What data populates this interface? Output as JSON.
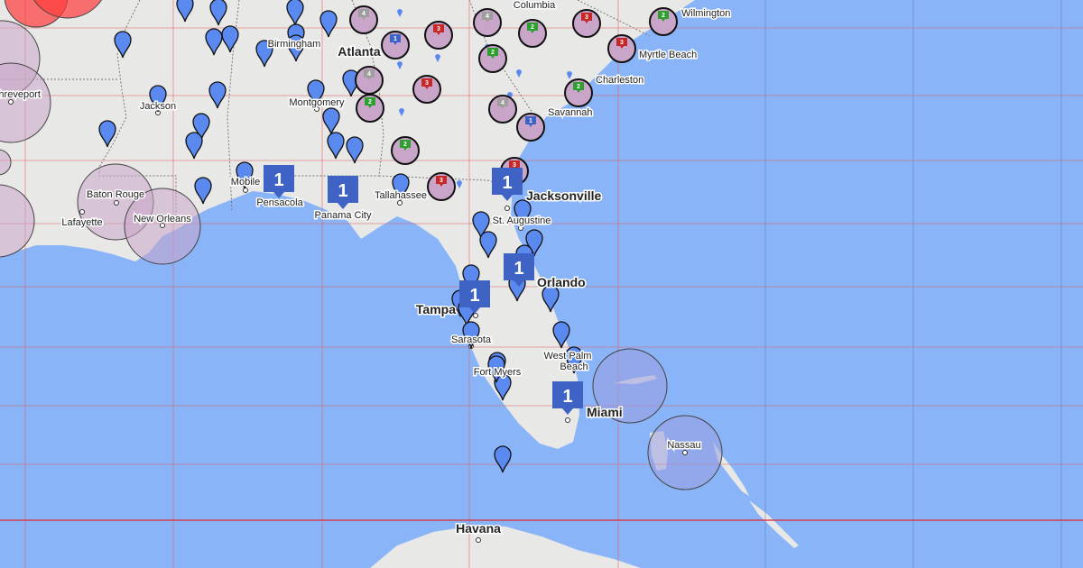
{
  "map": {
    "colors": {
      "water": "#8ab4f8",
      "land": "#e8e8e6",
      "grid": "#e06060",
      "grid_ocean": "#5a6fb0",
      "pin": "#5a8af0",
      "cluster_fill": "#c9a6c9",
      "square_marker": "#3f63c4",
      "red_circle": "#ff3b3b"
    },
    "cities": [
      {
        "name": "Atlanta",
        "major": true
      },
      {
        "name": "Birmingham"
      },
      {
        "name": "Columbia"
      },
      {
        "name": "Wilmington"
      },
      {
        "name": "Myrtle Beach"
      },
      {
        "name": "Charleston"
      },
      {
        "name": "Savannah"
      },
      {
        "name": "Montgomery"
      },
      {
        "name": "Jackson"
      },
      {
        "name": "Shreveport"
      },
      {
        "name": "Baton Rouge"
      },
      {
        "name": "Lafayette"
      },
      {
        "name": "New Orleans"
      },
      {
        "name": "Mobile"
      },
      {
        "name": "Pensacola"
      },
      {
        "name": "Panama City"
      },
      {
        "name": "Tallahassee"
      },
      {
        "name": "Jacksonville",
        "major": true
      },
      {
        "name": "St. Augustine"
      },
      {
        "name": "Orlando",
        "major": true
      },
      {
        "name": "Tampa",
        "major": true
      },
      {
        "name": "Sarasota"
      },
      {
        "name": "Fort Myers"
      },
      {
        "name": "West Palm Beach"
      },
      {
        "name": "Miami",
        "major": true
      },
      {
        "name": "Nassau"
      },
      {
        "name": "Havana",
        "major": true
      }
    ],
    "square_markers": [
      {
        "count": "1"
      },
      {
        "count": "1"
      },
      {
        "count": "1"
      },
      {
        "count": "1"
      },
      {
        "count": "1"
      },
      {
        "count": "1"
      }
    ],
    "cluster_markers": [
      {
        "count": "4",
        "color": "#9e9e9e"
      },
      {
        "count": "1",
        "color": "#3f63c4"
      },
      {
        "count": "3",
        "color": "#c62828"
      },
      {
        "count": "4",
        "color": "#9e9e9e"
      },
      {
        "count": "2",
        "color": "#2e9e2e"
      },
      {
        "count": "3",
        "color": "#c62828"
      },
      {
        "count": "2",
        "color": "#2e9e2e"
      },
      {
        "count": "3",
        "color": "#c62828"
      },
      {
        "count": "2",
        "color": "#2e9e2e"
      },
      {
        "count": "4",
        "color": "#9e9e9e"
      },
      {
        "count": "3",
        "color": "#c62828"
      },
      {
        "count": "2",
        "color": "#2e9e2e"
      },
      {
        "count": "2",
        "color": "#2e9e2e"
      },
      {
        "count": "4",
        "color": "#9e9e9e"
      },
      {
        "count": "1",
        "color": "#3f63c4"
      },
      {
        "count": "2",
        "color": "#2e9e2e"
      },
      {
        "count": "3",
        "color": "#c62828"
      },
      {
        "count": "3",
        "color": "#c62828"
      }
    ]
  }
}
